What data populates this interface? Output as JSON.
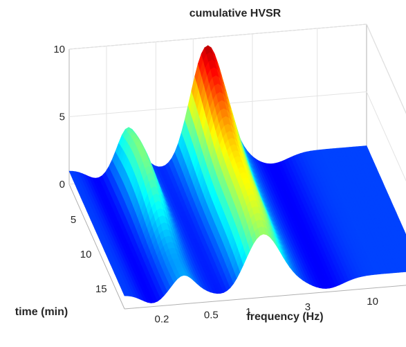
{
  "chart_data": {
    "type": "surface",
    "title": "cumulative HVSR",
    "xlabel": "frequency (Hz)",
    "ylabel": "time (min)",
    "zlabel": "",
    "x_scale": "log",
    "xlim": [
      0.1,
      25
    ],
    "ylim": [
      0,
      18
    ],
    "zlim": [
      0,
      10
    ],
    "x_ticks": [
      0.2,
      0.5,
      1,
      3,
      10
    ],
    "x_tick_labels": [
      "0.2",
      "0.5",
      "1",
      "3",
      "10"
    ],
    "y_ticks": [
      5,
      10,
      15
    ],
    "y_tick_labels": [
      "5",
      "10",
      "15"
    ],
    "z_ticks": [
      0,
      5,
      10
    ],
    "z_tick_labels": [
      "0",
      "5",
      "10"
    ],
    "colormap": "jet",
    "grid": true,
    "peaks": [
      {
        "frequency_hz": 0.3,
        "max_hvsr": 5.0
      },
      {
        "frequency_hz": 1.3,
        "max_hvsr": 9.5
      }
    ],
    "baseline_hvsr": 1.0
  }
}
